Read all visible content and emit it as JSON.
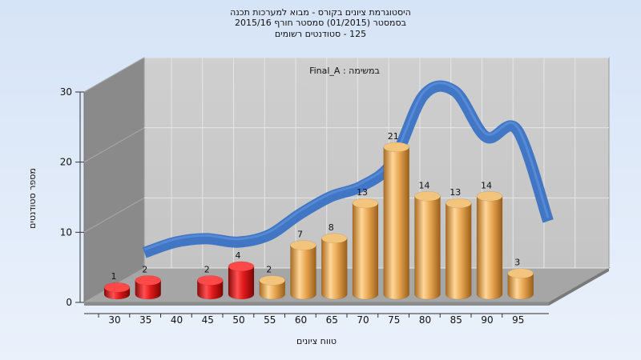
{
  "header": {
    "title_line1": "היסטוגרמת ציונים בקורס - מבוא למערכות תכנה",
    "title_line2": "בסמסטר  (01/2015)  סמסטר חורף 2015/16",
    "title_line3": "125 - סטודנטים רשומים"
  },
  "colors": {
    "background": "#dde8f7",
    "fail_bar": "#e01818",
    "pass_bar": "#e0a050",
    "curve": "#3a72c4",
    "wall": "#8a8a8a",
    "back_wall": "#c8c8c8",
    "floor": "#a0a0a0"
  },
  "chart_data": {
    "type": "bar",
    "annotation": "במשימה : Final_A",
    "xlabel": "טווח ציונים",
    "ylabel": "מספר סטודנטים",
    "ylim": [
      0,
      30
    ],
    "yticks": [
      0,
      10,
      20,
      30
    ],
    "grid": true,
    "categories": [
      "30",
      "35",
      "40",
      "45",
      "50",
      "55",
      "60",
      "65",
      "70",
      "75",
      "80",
      "85",
      "90",
      "95"
    ],
    "bars": [
      {
        "x": 30,
        "value": 1,
        "status": "fail"
      },
      {
        "x": 35,
        "value": 2,
        "status": "fail"
      },
      {
        "x": 45,
        "value": 2,
        "status": "fail"
      },
      {
        "x": 50,
        "value": 4,
        "status": "fail"
      },
      {
        "x": 55,
        "value": 2,
        "status": "pass"
      },
      {
        "x": 60,
        "value": 7,
        "status": "pass"
      },
      {
        "x": 65,
        "value": 8,
        "status": "pass"
      },
      {
        "x": 70,
        "value": 13,
        "status": "pass"
      },
      {
        "x": 75,
        "value": 21,
        "status": "pass"
      },
      {
        "x": 80,
        "value": 14,
        "status": "pass"
      },
      {
        "x": 85,
        "value": 13,
        "status": "pass"
      },
      {
        "x": 90,
        "value": 14,
        "status": "pass"
      },
      {
        "x": 95,
        "value": 3,
        "status": "pass"
      }
    ],
    "curve": [
      {
        "x": 32.5,
        "y": 1.5
      },
      {
        "x": 37.5,
        "y": 3
      },
      {
        "x": 42.5,
        "y": 3.5
      },
      {
        "x": 47.5,
        "y": 3
      },
      {
        "x": 52.5,
        "y": 4
      },
      {
        "x": 57.5,
        "y": 7
      },
      {
        "x": 62.5,
        "y": 9.5
      },
      {
        "x": 67.5,
        "y": 11
      },
      {
        "x": 72.5,
        "y": 14.5
      },
      {
        "x": 77.5,
        "y": 24
      },
      {
        "x": 82.5,
        "y": 24.5
      },
      {
        "x": 87.5,
        "y": 18
      },
      {
        "x": 92.5,
        "y": 19
      },
      {
        "x": 97.5,
        "y": 6
      }
    ]
  }
}
